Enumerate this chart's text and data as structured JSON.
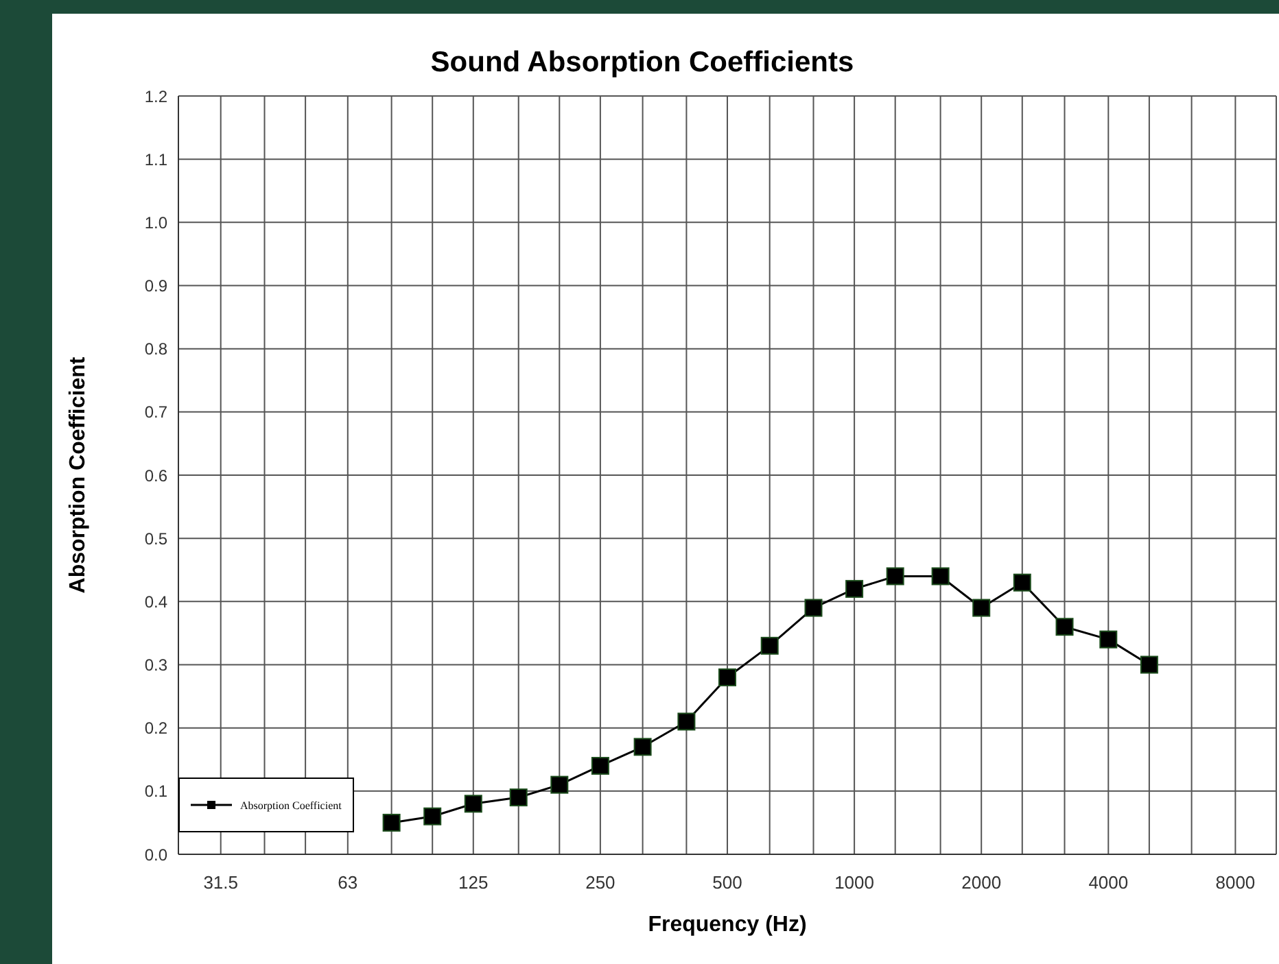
{
  "chart_data": {
    "type": "line",
    "title": "Sound Absorption Coefficients",
    "xlabel": "Frequency (Hz)",
    "ylabel": "Absorption Coefficient",
    "log": "x",
    "x": [
      80,
      100,
      125,
      160,
      200,
      250,
      315,
      400,
      500,
      630,
      800,
      1000,
      1250,
      1600,
      2000,
      2500,
      3150,
      4000,
      5000
    ],
    "series": [
      {
        "name": "Absorption Coefficient",
        "color": "#000000",
        "values": [
          0.05,
          0.06,
          0.08,
          0.09,
          0.11,
          0.14,
          0.17,
          0.21,
          0.28,
          0.33,
          0.39,
          0.42,
          0.44,
          0.44,
          0.39,
          0.43,
          0.36,
          0.34,
          0.3
        ]
      }
    ],
    "xlim": [
      25,
      10000
    ],
    "xticks": [
      {
        "value": 31.5,
        "label": "31.5"
      },
      {
        "value": 40,
        "label": null
      },
      {
        "value": 50,
        "label": null
      },
      63,
      {
        "value": 80,
        "label": null
      },
      {
        "value": 100,
        "label": null
      },
      125,
      {
        "value": 160,
        "label": null
      },
      {
        "value": 200,
        "label": null
      },
      250,
      {
        "value": 315,
        "label": null
      },
      {
        "value": 400,
        "label": null
      },
      500,
      {
        "value": 630,
        "label": null
      },
      {
        "value": 800,
        "label": null
      },
      1000,
      {
        "value": 1250,
        "label": null
      },
      {
        "value": 1600,
        "label": null
      },
      2000,
      {
        "value": 2500,
        "label": null
      },
      {
        "value": 3150,
        "label": null
      },
      4000,
      {
        "value": 5000,
        "label": null
      },
      {
        "value": 6300,
        "label": null
      },
      8000
    ],
    "ylim": [
      0,
      1.2
    ],
    "yticks": [
      {
        "value": 0,
        "label": "0.0"
      },
      0.1,
      0.2,
      0.3,
      0.4,
      0.5,
      0.6,
      0.7,
      0.8,
      0.9,
      {
        "value": 1,
        "label": "1.0"
      },
      1.1,
      1.2
    ],
    "grid": true,
    "legend": "bottom left",
    "marker": "square",
    "line_style": "solid"
  }
}
